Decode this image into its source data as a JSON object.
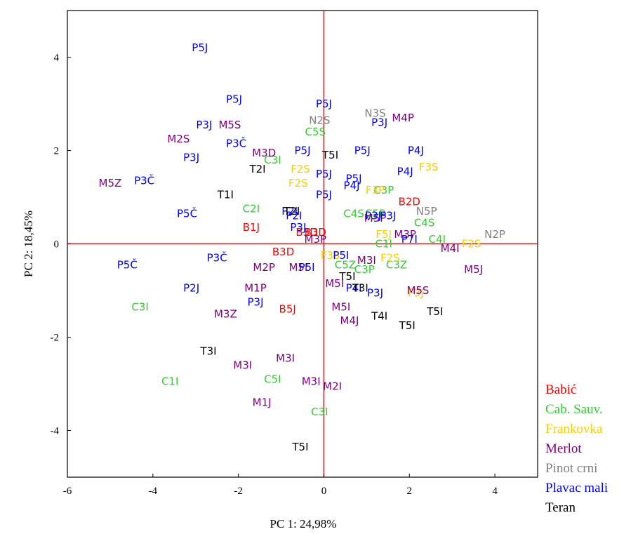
{
  "chart_data": {
    "type": "scatter",
    "title": "",
    "xlabel": "PC 1: 24,98%",
    "ylabel": "PC 2: 18,45%",
    "xlim": [
      -6,
      5
    ],
    "ylim": [
      -5,
      5
    ],
    "xticks": [
      -6,
      -4,
      -2,
      0,
      2,
      4
    ],
    "yticks": [
      -4,
      -2,
      0,
      2,
      4
    ],
    "grid": false,
    "zero_lines": true,
    "zero_line_color": "#ff0000",
    "legend_position": "bottom-right outside plot",
    "series": [
      {
        "name": "Babić",
        "color": "#ff0000",
        "points": [
          {
            "x": -1.7,
            "y": 0.35,
            "label": "B1J"
          },
          {
            "x": 2.0,
            "y": 0.9,
            "label": "B2D"
          },
          {
            "x": -0.95,
            "y": -0.17,
            "label": "B3D"
          },
          {
            "x": -0.2,
            "y": 0.25,
            "label": "B3D"
          },
          {
            "x": -0.85,
            "y": -1.4,
            "label": "B5J"
          },
          {
            "x": -0.4,
            "y": 0.25,
            "label": "B3D"
          }
        ]
      },
      {
        "name": "Cab. Sauv.",
        "color": "#33cc33",
        "points": [
          {
            "x": -1.7,
            "y": 0.75,
            "label": "C2I"
          },
          {
            "x": -4.3,
            "y": -1.35,
            "label": "C3I"
          },
          {
            "x": -3.6,
            "y": -2.95,
            "label": "C1I"
          },
          {
            "x": -1.2,
            "y": -2.9,
            "label": "C5I"
          },
          {
            "x": -0.1,
            "y": -3.6,
            "label": "C3I"
          },
          {
            "x": -1.2,
            "y": 1.8,
            "label": "C3I"
          },
          {
            "x": -0.2,
            "y": 2.4,
            "label": "C5S"
          },
          {
            "x": 0.7,
            "y": 0.65,
            "label": "C4S"
          },
          {
            "x": 1.4,
            "y": 1.15,
            "label": "C3P"
          },
          {
            "x": 1.2,
            "y": 0.65,
            "label": "C5P"
          },
          {
            "x": 2.35,
            "y": 0.45,
            "label": "C4S"
          },
          {
            "x": 2.65,
            "y": 0.1,
            "label": "C4I"
          },
          {
            "x": 1.4,
            "y": 0.0,
            "label": "C1I"
          },
          {
            "x": 1.7,
            "y": -0.45,
            "label": "C3Z"
          },
          {
            "x": 0.95,
            "y": -0.55,
            "label": "C3P"
          },
          {
            "x": 0.5,
            "y": -0.45,
            "label": "C5Z"
          }
        ]
      },
      {
        "name": "Frankovka",
        "color": "#ffcc00",
        "points": [
          {
            "x": -0.55,
            "y": 1.6,
            "label": "F2S"
          },
          {
            "x": -0.6,
            "y": 1.3,
            "label": "F2S"
          },
          {
            "x": 2.45,
            "y": 1.65,
            "label": "F3S"
          },
          {
            "x": 3.45,
            "y": 0.0,
            "label": "F2S"
          },
          {
            "x": 1.4,
            "y": 0.2,
            "label": "F5J"
          },
          {
            "x": 1.55,
            "y": -0.3,
            "label": "F2S"
          },
          {
            "x": 2.15,
            "y": -1.05,
            "label": "F3J"
          },
          {
            "x": 0.15,
            "y": -0.25,
            "label": "F3S"
          },
          {
            "x": 1.2,
            "y": 1.15,
            "label": "F3P"
          }
        ]
      },
      {
        "name": "Merlot",
        "color": "#800080",
        "points": [
          {
            "x": -5.0,
            "y": 1.3,
            "label": "M5Z"
          },
          {
            "x": -3.4,
            "y": 2.25,
            "label": "M2S"
          },
          {
            "x": -2.2,
            "y": 2.55,
            "label": "M5S"
          },
          {
            "x": -1.4,
            "y": 1.95,
            "label": "M3D"
          },
          {
            "x": 1.85,
            "y": 2.7,
            "label": "M4P"
          },
          {
            "x": 1.2,
            "y": 0.55,
            "label": "M5P"
          },
          {
            "x": 1.9,
            "y": 0.2,
            "label": "M3P"
          },
          {
            "x": -0.2,
            "y": 0.1,
            "label": "M3P"
          },
          {
            "x": -1.4,
            "y": -0.5,
            "label": "M2P"
          },
          {
            "x": -0.6,
            "y": -0.5,
            "label": "M5I"
          },
          {
            "x": 1.0,
            "y": -0.35,
            "label": "M3I"
          },
          {
            "x": 0.25,
            "y": -0.85,
            "label": "M5I"
          },
          {
            "x": 2.95,
            "y": -0.1,
            "label": "M4I"
          },
          {
            "x": 3.5,
            "y": -0.55,
            "label": "M5J"
          },
          {
            "x": 2.2,
            "y": -1.0,
            "label": "M5S"
          },
          {
            "x": -1.6,
            "y": -0.95,
            "label": "M1P"
          },
          {
            "x": -2.3,
            "y": -1.5,
            "label": "M3Z"
          },
          {
            "x": 0.4,
            "y": -1.35,
            "label": "M5I"
          },
          {
            "x": 0.6,
            "y": -1.65,
            "label": "M4J"
          },
          {
            "x": -1.9,
            "y": -2.6,
            "label": "M3I"
          },
          {
            "x": -0.9,
            "y": -2.45,
            "label": "M3I"
          },
          {
            "x": -0.3,
            "y": -2.95,
            "label": "M3I"
          },
          {
            "x": 0.2,
            "y": -3.05,
            "label": "M2I"
          },
          {
            "x": -1.45,
            "y": -3.4,
            "label": "M1J"
          }
        ]
      },
      {
        "name": "Pinot crni",
        "color": "#808080",
        "points": [
          {
            "x": -0.1,
            "y": 2.65,
            "label": "N2S"
          },
          {
            "x": 1.2,
            "y": 2.8,
            "label": "N3S"
          },
          {
            "x": 4.0,
            "y": 0.2,
            "label": "N2P"
          },
          {
            "x": 2.4,
            "y": 0.7,
            "label": "N5P"
          }
        ]
      },
      {
        "name": "Plavac mali",
        "color": "#0000ff",
        "points": [
          {
            "x": -2.9,
            "y": 4.2,
            "label": "P5J"
          },
          {
            "x": -2.1,
            "y": 3.1,
            "label": "P5J"
          },
          {
            "x": -2.8,
            "y": 2.55,
            "label": "P3J"
          },
          {
            "x": -2.05,
            "y": 2.15,
            "label": "P3Č"
          },
          {
            "x": -3.1,
            "y": 1.85,
            "label": "P3J"
          },
          {
            "x": -4.2,
            "y": 1.35,
            "label": "P3Č"
          },
          {
            "x": -3.2,
            "y": 0.65,
            "label": "P5Č"
          },
          {
            "x": -4.6,
            "y": -0.45,
            "label": "P5Č"
          },
          {
            "x": -2.5,
            "y": -0.3,
            "label": "P3Č"
          },
          {
            "x": -3.1,
            "y": -0.95,
            "label": "P2J"
          },
          {
            "x": -1.6,
            "y": -1.25,
            "label": "P3J"
          },
          {
            "x": -0.5,
            "y": 2.0,
            "label": "P5J"
          },
          {
            "x": 0.0,
            "y": 3.0,
            "label": "P5J"
          },
          {
            "x": 1.3,
            "y": 2.6,
            "label": "P3J"
          },
          {
            "x": 0.9,
            "y": 2.0,
            "label": "P5J"
          },
          {
            "x": 2.15,
            "y": 2.0,
            "label": "P4J"
          },
          {
            "x": 1.9,
            "y": 1.55,
            "label": "P4J"
          },
          {
            "x": 0.0,
            "y": 1.5,
            "label": "P5J"
          },
          {
            "x": 0.7,
            "y": 1.4,
            "label": "P5J"
          },
          {
            "x": 0.65,
            "y": 1.25,
            "label": "P4J"
          },
          {
            "x": 0.0,
            "y": 1.05,
            "label": "P5J"
          },
          {
            "x": -0.8,
            "y": 0.7,
            "label": "P2I"
          },
          {
            "x": -0.7,
            "y": 0.6,
            "label": "P2I"
          },
          {
            "x": -0.6,
            "y": 0.35,
            "label": "P3J"
          },
          {
            "x": 1.15,
            "y": 0.6,
            "label": "P3J"
          },
          {
            "x": 1.5,
            "y": 0.6,
            "label": "P3J"
          },
          {
            "x": 2.0,
            "y": 0.1,
            "label": "P7I"
          },
          {
            "x": 0.4,
            "y": -0.25,
            "label": "P5I"
          },
          {
            "x": -0.4,
            "y": -0.5,
            "label": "P5I"
          },
          {
            "x": 0.7,
            "y": -0.95,
            "label": "P4I"
          },
          {
            "x": 1.2,
            "y": -1.05,
            "label": "P3J"
          }
        ]
      },
      {
        "name": "Teran",
        "color": "#000000",
        "points": [
          {
            "x": 0.15,
            "y": 1.9,
            "label": "T5I"
          },
          {
            "x": -1.55,
            "y": 1.6,
            "label": "T2I"
          },
          {
            "x": -2.3,
            "y": 1.05,
            "label": "T1I"
          },
          {
            "x": -0.75,
            "y": 0.7,
            "label": "T2I"
          },
          {
            "x": 0.55,
            "y": -0.7,
            "label": "T5I"
          },
          {
            "x": 0.85,
            "y": -0.95,
            "label": "T3I"
          },
          {
            "x": 1.3,
            "y": -1.55,
            "label": "T4I"
          },
          {
            "x": 2.6,
            "y": -1.45,
            "label": "T5I"
          },
          {
            "x": 1.95,
            "y": -1.75,
            "label": "T5I"
          },
          {
            "x": -2.7,
            "y": -2.3,
            "label": "T3I"
          },
          {
            "x": -0.55,
            "y": -4.35,
            "label": "T5I"
          }
        ]
      }
    ]
  }
}
